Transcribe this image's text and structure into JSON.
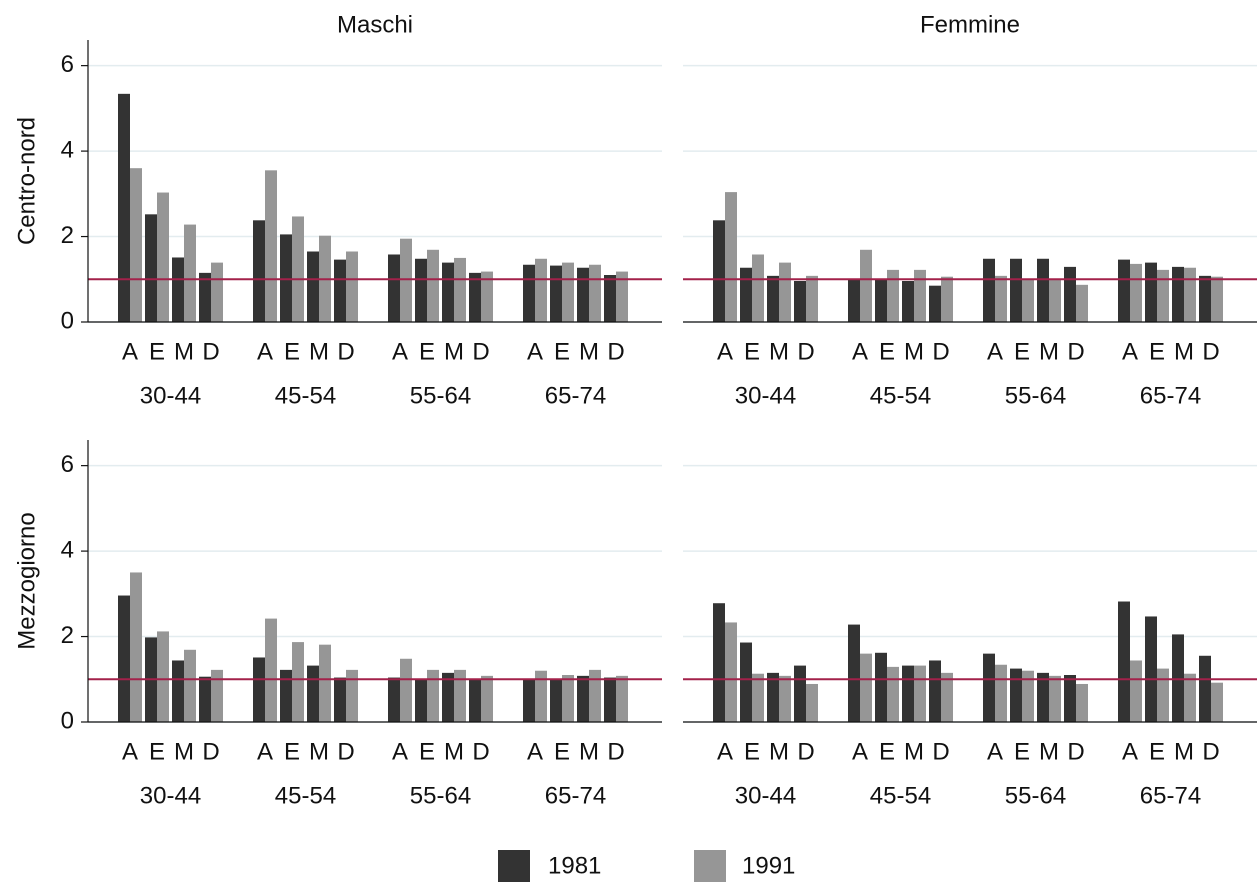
{
  "chart_data": [
    {
      "type": "bar",
      "title": "Maschi",
      "ylabel": "Centro-nord",
      "categories": [
        "A",
        "E",
        "M",
        "D",
        "A",
        "E",
        "M",
        "D",
        "A",
        "E",
        "M",
        "D",
        "A",
        "E",
        "M",
        "D"
      ],
      "groups": [
        "30-44",
        "45-54",
        "55-64",
        "65-74"
      ],
      "series": [
        {
          "name": "1981",
          "color": "#333333",
          "values": [
            5.34,
            2.52,
            1.51,
            1.15,
            2.38,
            2.05,
            1.65,
            1.46,
            1.58,
            1.48,
            1.39,
            1.15,
            1.34,
            1.32,
            1.27,
            1.1
          ]
        },
        {
          "name": "1991",
          "color": "#969696",
          "values": [
            3.6,
            3.03,
            2.28,
            1.39,
            3.55,
            2.47,
            2.02,
            1.65,
            1.95,
            1.69,
            1.5,
            1.18,
            1.48,
            1.39,
            1.34,
            1.18
          ]
        }
      ],
      "ylim": [
        0,
        6.6
      ],
      "yticks": [
        0,
        2,
        4,
        6
      ],
      "yaxis": true,
      "grid": true,
      "hline": 1,
      "hline_color": "#a3214a"
    },
    {
      "type": "bar",
      "title": "Femmine",
      "categories": [
        "A",
        "E",
        "M",
        "D",
        "A",
        "E",
        "M",
        "D",
        "A",
        "E",
        "M",
        "D",
        "A",
        "E",
        "M",
        "D"
      ],
      "groups": [
        "30-44",
        "45-54",
        "55-64",
        "65-74"
      ],
      "series": [
        {
          "name": "1981",
          "color": "#333333",
          "values": [
            2.38,
            1.27,
            1.08,
            0.96,
            0.99,
            0.99,
            0.96,
            0.85,
            1.48,
            1.48,
            1.48,
            1.29,
            1.46,
            1.39,
            1.29,
            1.08
          ]
        },
        {
          "name": "1991",
          "color": "#969696",
          "values": [
            3.04,
            1.58,
            1.39,
            1.08,
            1.69,
            1.22,
            1.22,
            1.06,
            1.08,
            0.99,
            0.99,
            0.87,
            1.36,
            1.22,
            1.27,
            1.06
          ]
        }
      ],
      "ylim": [
        0,
        6.6
      ],
      "yticks": [
        0,
        2,
        4,
        6
      ],
      "yaxis": false,
      "grid": true,
      "hline": 1,
      "hline_color": "#a3214a"
    },
    {
      "type": "bar",
      "ylabel": "Mezzogiorno",
      "categories": [
        "A",
        "E",
        "M",
        "D",
        "A",
        "E",
        "M",
        "D",
        "A",
        "E",
        "M",
        "D",
        "A",
        "E",
        "M",
        "D"
      ],
      "groups": [
        "30-44",
        "45-54",
        "55-64",
        "65-74"
      ],
      "series": [
        {
          "name": "1981",
          "color": "#333333",
          "values": [
            2.96,
            1.98,
            1.44,
            1.06,
            1.51,
            1.22,
            1.32,
            1.04,
            1.04,
            1.01,
            1.15,
            1.01,
            1.01,
            0.99,
            1.08,
            1.04
          ]
        },
        {
          "name": "1991",
          "color": "#969696",
          "values": [
            3.5,
            2.12,
            1.69,
            1.22,
            2.42,
            1.87,
            1.81,
            1.22,
            1.48,
            1.22,
            1.22,
            1.08,
            1.2,
            1.1,
            1.22,
            1.08
          ]
        }
      ],
      "ylim": [
        0,
        6.6
      ],
      "yticks": [
        0,
        2,
        4,
        6
      ],
      "yaxis": true,
      "grid": true,
      "hline": 1,
      "hline_color": "#a3214a"
    },
    {
      "type": "bar",
      "categories": [
        "A",
        "E",
        "M",
        "D",
        "A",
        "E",
        "M",
        "D",
        "A",
        "E",
        "M",
        "D",
        "A",
        "E",
        "M",
        "D"
      ],
      "groups": [
        "30-44",
        "45-54",
        "55-64",
        "65-74"
      ],
      "series": [
        {
          "name": "1981",
          "color": "#333333",
          "values": [
            2.78,
            1.86,
            1.15,
            1.32,
            2.28,
            1.62,
            1.32,
            1.44,
            1.6,
            1.25,
            1.15,
            1.1,
            2.82,
            2.47,
            2.05,
            1.55
          ]
        },
        {
          "name": "1991",
          "color": "#969696",
          "values": [
            2.33,
            1.13,
            1.08,
            0.89,
            1.6,
            1.29,
            1.32,
            1.15,
            1.34,
            1.2,
            1.08,
            0.89,
            1.44,
            1.25,
            1.13,
            0.92
          ]
        }
      ],
      "ylim": [
        0,
        6.6
      ],
      "yticks": [
        0,
        2,
        4,
        6
      ],
      "yaxis": false,
      "grid": true,
      "hline": 1,
      "hline_color": "#a3214a"
    }
  ]
}
